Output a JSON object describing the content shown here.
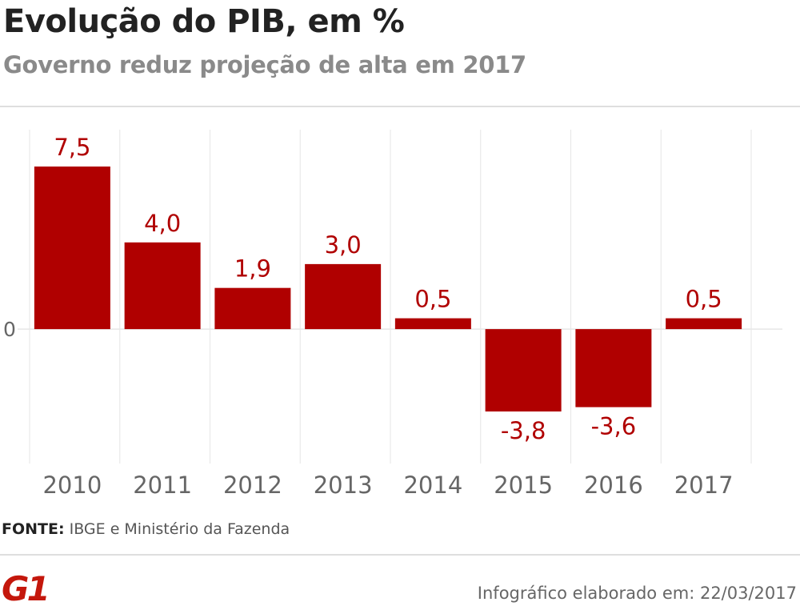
{
  "header": {
    "title": "Evolução do PIB, em %",
    "subtitle": "Governo reduz projeção de alta em 2017"
  },
  "chart_data": {
    "type": "bar",
    "title": "Evolução do PIB, em %",
    "subtitle": "Governo reduz projeção de alta em 2017",
    "categories": [
      "2010",
      "2011",
      "2012",
      "2013",
      "2014",
      "2015",
      "2016",
      "2017"
    ],
    "values": [
      7.5,
      4.0,
      1.9,
      3.0,
      0.5,
      -3.8,
      -3.6,
      0.5
    ],
    "value_labels": [
      "7,5",
      "4,0",
      "1,9",
      "3,0",
      "0,5",
      "-3,8",
      "-3,6",
      "0,5"
    ],
    "zero_label": "0",
    "xlabel": "",
    "ylabel": "",
    "ylim": [
      -6.2,
      9.2
    ],
    "grid": true,
    "legend": "none",
    "colors": {
      "bar": "#b00000",
      "label": "#b00000",
      "tick": "#666666",
      "grid": "#e6e6e6"
    }
  },
  "footer": {
    "source_label": "FONTE:",
    "source_text": " IBGE e Ministério da Fazenda",
    "logo_text": "G1",
    "logo_color": "#c4170c",
    "credit": "Infográfico elaborado em: 22/03/2017"
  }
}
